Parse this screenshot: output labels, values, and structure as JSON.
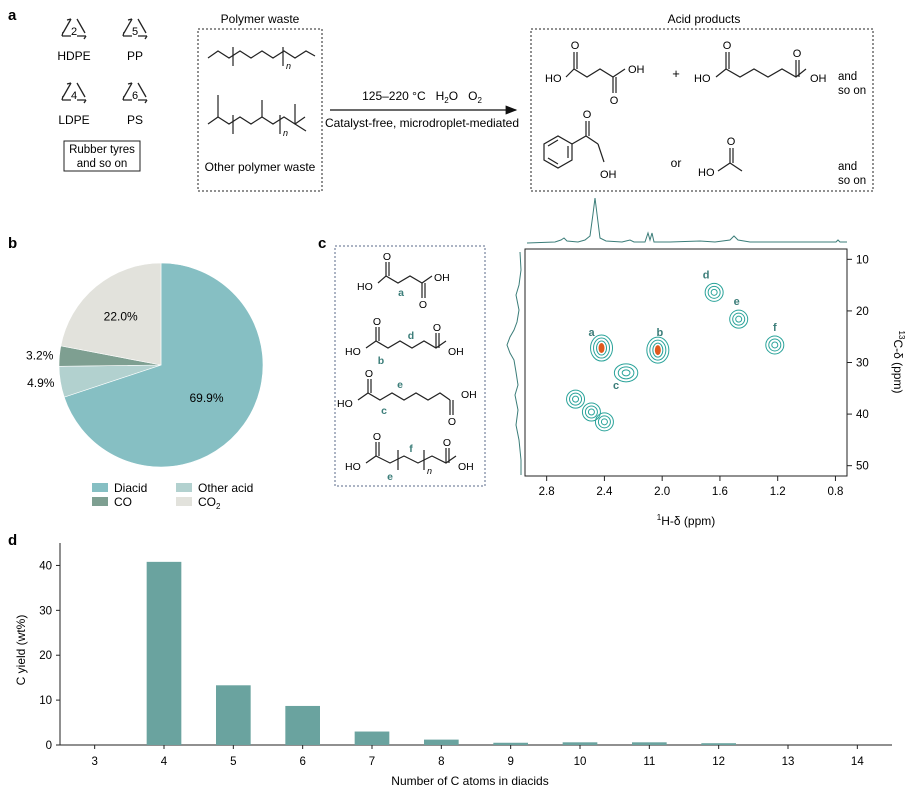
{
  "panel_a": {
    "letter": "a",
    "recycle_codes": [
      {
        "code": "2",
        "label": "HDPE"
      },
      {
        "code": "5",
        "label": "PP"
      },
      {
        "code": "4",
        "label": "LDPE"
      },
      {
        "code": "6",
        "label": "PS"
      }
    ],
    "rubber_line1": "Rubber tyres",
    "rubber_line2": "and so on",
    "waste_title": "Polymer waste",
    "n_sub": "n",
    "other_waste": "Other polymer waste",
    "conditions_temp": "125–220 °C",
    "conditions_h2o": "H",
    "conditions_h2o_sub": "2",
    "conditions_h2o_end": "O",
    "conditions_o2": "O",
    "conditions_o2_sub": "2",
    "conditions_line2": "Catalyst-free, microdroplet-mediated",
    "products_title": "Acid products",
    "OH": "OH",
    "HO": "HO",
    "O": "O",
    "plus": "+",
    "or": "or",
    "and": "and",
    "so_on": "so on"
  },
  "panel_b": {
    "letter": "b",
    "legend": [
      "Diacid",
      "Other acid",
      "CO",
      "CO"
    ],
    "co2_sub": "2"
  },
  "panel_c": {
    "letter": "c",
    "structure_labels": [
      "a",
      "b",
      "d",
      "e",
      "c",
      "f",
      "e"
    ],
    "n_sub": "n",
    "peak_labels": [
      "a",
      "b",
      "c",
      "d",
      "e",
      "f"
    ],
    "xlabel_sup": "1",
    "xlabel": "H-δ (ppm)",
    "ylabel_sup": "13",
    "ylabel": "C-δ (ppm)"
  },
  "panel_d": {
    "letter": "d"
  },
  "colors": {
    "teal": "#6aa39f",
    "diacid": "#86bfc3",
    "other_acid": "#b2d1cf",
    "co": "#7e9f91",
    "co2": "#e2e2dc",
    "contour": "#2aa39a",
    "peak_core": "#e05a1f"
  },
  "chart_data": [
    {
      "type": "pie",
      "slices": [
        {
          "label": "Diacid",
          "value": 69.9,
          "text": "69.9%"
        },
        {
          "label": "Other acid",
          "value": 4.9,
          "text": "4.9%"
        },
        {
          "label": "CO",
          "value": 3.2,
          "text": "3.2%"
        },
        {
          "label": "CO2",
          "value": 22.0,
          "text": "22.0%"
        }
      ],
      "legend": "bottom"
    },
    {
      "type": "scatter",
      "subtype": "2D NMR HSQC contour",
      "xlim": [
        2.95,
        0.72
      ],
      "ylim": [
        8,
        52
      ],
      "xticks": [
        "2.8",
        "2.4",
        "2.0",
        "1.6",
        "1.2",
        "0.8"
      ],
      "xtick_values": [
        2.8,
        2.4,
        2.0,
        1.6,
        1.2,
        0.8
      ],
      "yticks": [
        "10",
        "20",
        "30",
        "40",
        "50"
      ],
      "ytick_values": [
        10,
        20,
        30,
        40,
        50
      ],
      "peaks": [
        {
          "label": "a",
          "x": 2.42,
          "y": 27.2
        },
        {
          "label": "b",
          "x": 2.03,
          "y": 27.6
        },
        {
          "label": "c",
          "x": 2.25,
          "y": 32.0
        },
        {
          "label": "d",
          "x": 1.64,
          "y": 16.4
        },
        {
          "label": "e",
          "x": 1.47,
          "y": 21.6
        },
        {
          "label": "f",
          "x": 1.22,
          "y": 26.6
        },
        {
          "label": "",
          "x": 2.6,
          "y": 37.1
        },
        {
          "label": "",
          "x": 2.49,
          "y": 39.6
        },
        {
          "label": "",
          "x": 2.4,
          "y": 41.5
        }
      ]
    },
    {
      "type": "bar",
      "xlabel": "Number of C atoms in diacids",
      "ylabel": "C yield (wt%)",
      "categories": [
        "3",
        "4",
        "5",
        "6",
        "7",
        "8",
        "9",
        "10",
        "11",
        "12",
        "13",
        "14"
      ],
      "values": [
        0,
        40.8,
        13.3,
        8.7,
        3.0,
        1.2,
        0.5,
        0.6,
        0.6,
        0.4,
        0,
        0
      ],
      "ylim": [
        0,
        45
      ],
      "yticks": [
        "0",
        "10",
        "20",
        "30",
        "40"
      ],
      "ytick_values": [
        0,
        10,
        20,
        30,
        40
      ],
      "grid": false
    }
  ]
}
